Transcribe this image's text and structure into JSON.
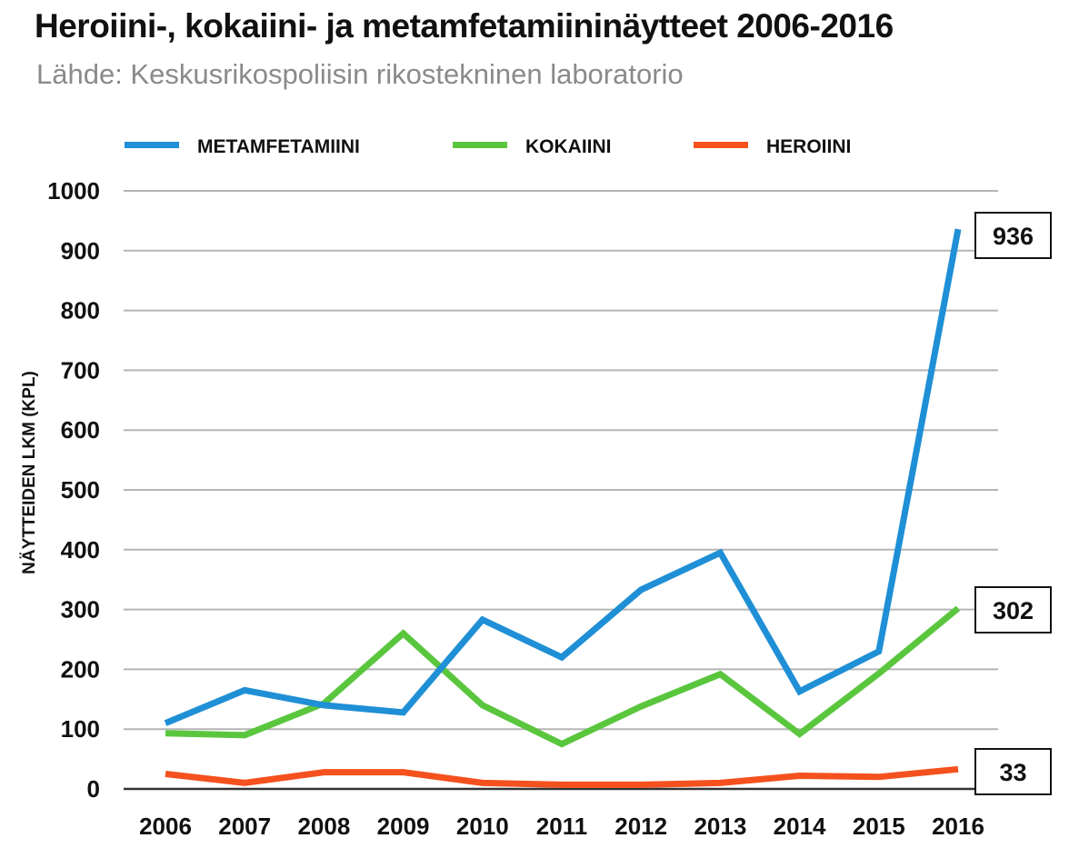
{
  "header": {
    "title": "Heroiini-, kokaiini- ja metamfetamiininäytteet 2006-2016",
    "subtitle": "Lähde: Keskusrikospoliisin rikostekninen laboratorio"
  },
  "chart_data": {
    "type": "line",
    "x": [
      "2006",
      "2007",
      "2008",
      "2009",
      "2010",
      "2011",
      "2012",
      "2013",
      "2014",
      "2015",
      "2016"
    ],
    "ylabel": "NÄYTTEIDEN LKM (KPL)",
    "xlabel": "",
    "ylim": [
      0,
      1000
    ],
    "yticks": [
      0,
      100,
      200,
      300,
      400,
      500,
      600,
      700,
      800,
      900,
      1000
    ],
    "grid": true,
    "legend_position": "top",
    "series": [
      {
        "name": "METAMFETAMIINI",
        "color": "#1f8fd6",
        "values": [
          110,
          165,
          140,
          128,
          283,
          220,
          333,
          395,
          163,
          230,
          936
        ],
        "end_label": "936"
      },
      {
        "name": "KOKAIINI",
        "color": "#5ac63e",
        "values": [
          93,
          90,
          143,
          260,
          140,
          75,
          138,
          192,
          92,
          193,
          302
        ],
        "end_label": "302"
      },
      {
        "name": "HEROIINI",
        "color": "#f4511e",
        "values": [
          25,
          10,
          28,
          28,
          10,
          7,
          7,
          10,
          22,
          20,
          33
        ],
        "end_label": "33"
      }
    ]
  }
}
